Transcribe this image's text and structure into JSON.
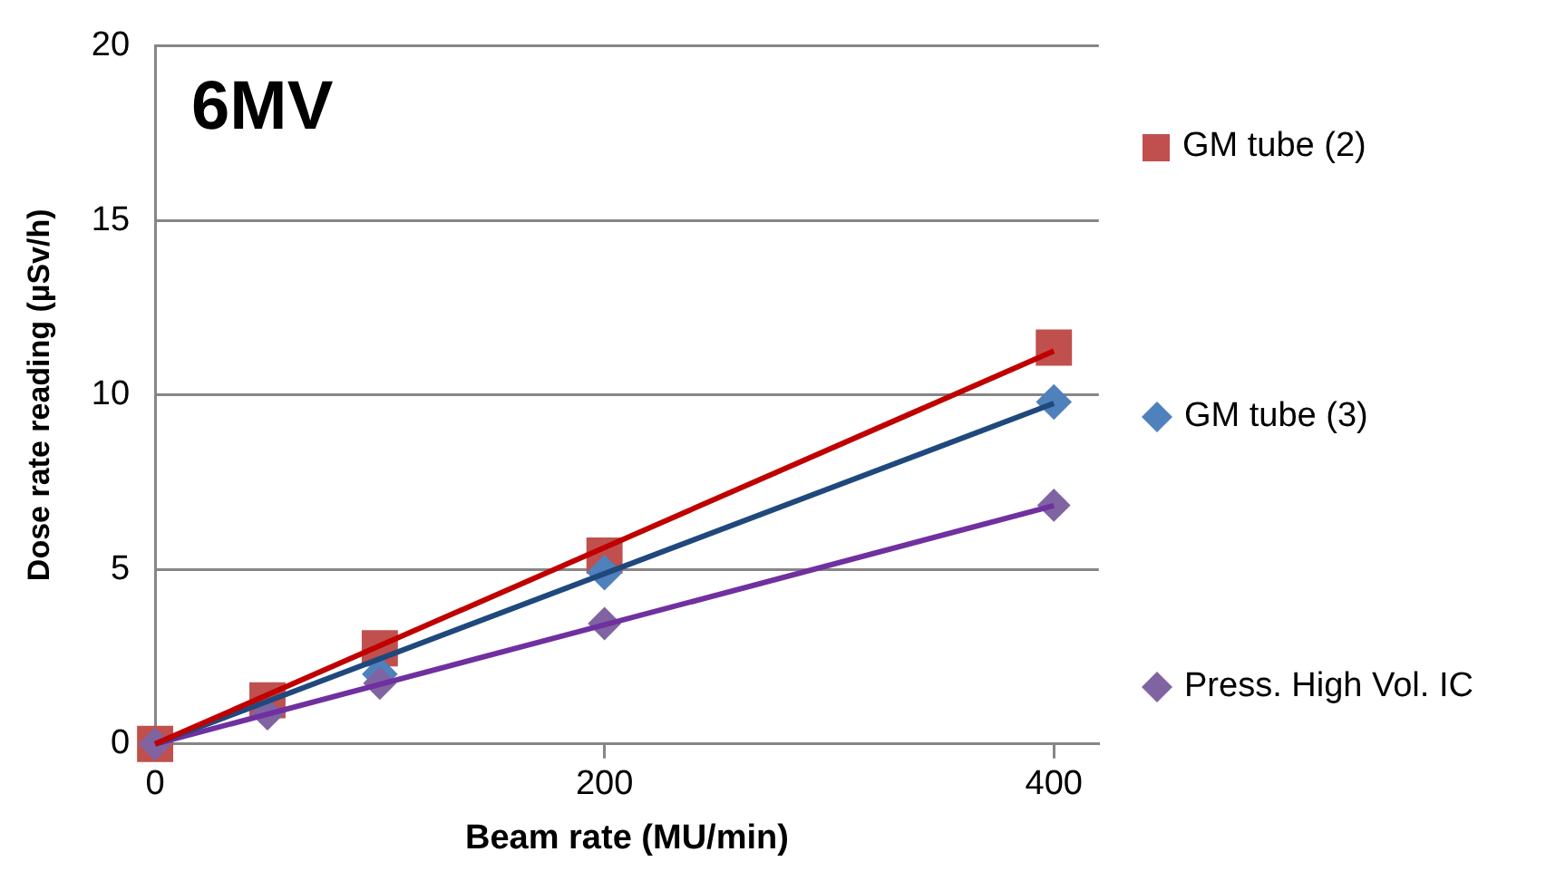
{
  "chart_data": {
    "type": "scatter",
    "title": "6MV",
    "xlabel": "Beam rate (MU/min)",
    "ylabel": "Dose rate reading (µSv/h)",
    "xlim": [
      0,
      420
    ],
    "xticks": [
      0,
      200,
      400
    ],
    "ylim": [
      0,
      20
    ],
    "yticks": [
      0,
      5,
      10,
      15,
      20
    ],
    "grid": "y",
    "legend": "right",
    "series": [
      {
        "name": "GM tube (2)",
        "marker": "square",
        "color": "#c0504d",
        "x": [
          0,
          50,
          100,
          200,
          400
        ],
        "values": [
          0,
          1.25,
          2.74,
          5.4,
          11.36
        ]
      },
      {
        "name": "GM tube (3)",
        "marker": "diamond",
        "color": "#4f81bd",
        "x": [
          100,
          200,
          400
        ],
        "values": [
          2.0,
          4.91,
          9.8
        ]
      },
      {
        "name": "Press. High Vol. IC",
        "marker": "diamond",
        "color": "#8064a2",
        "x": [
          0,
          50,
          100,
          200,
          400
        ],
        "values": [
          0,
          0.86,
          1.74,
          3.45,
          6.84
        ]
      },
      {
        "type": "line",
        "marker": "none",
        "color": "#c00000",
        "x": [
          0,
          400
        ],
        "values": [
          0,
          11.26
        ]
      },
      {
        "type": "line",
        "marker": "none",
        "color": "#1f497d",
        "x": [
          0,
          400
        ],
        "values": [
          0,
          9.76
        ]
      },
      {
        "type": "line",
        "marker": "none",
        "color": "#7030a0",
        "x": [
          0,
          400
        ],
        "values": [
          0,
          6.83
        ]
      }
    ]
  }
}
